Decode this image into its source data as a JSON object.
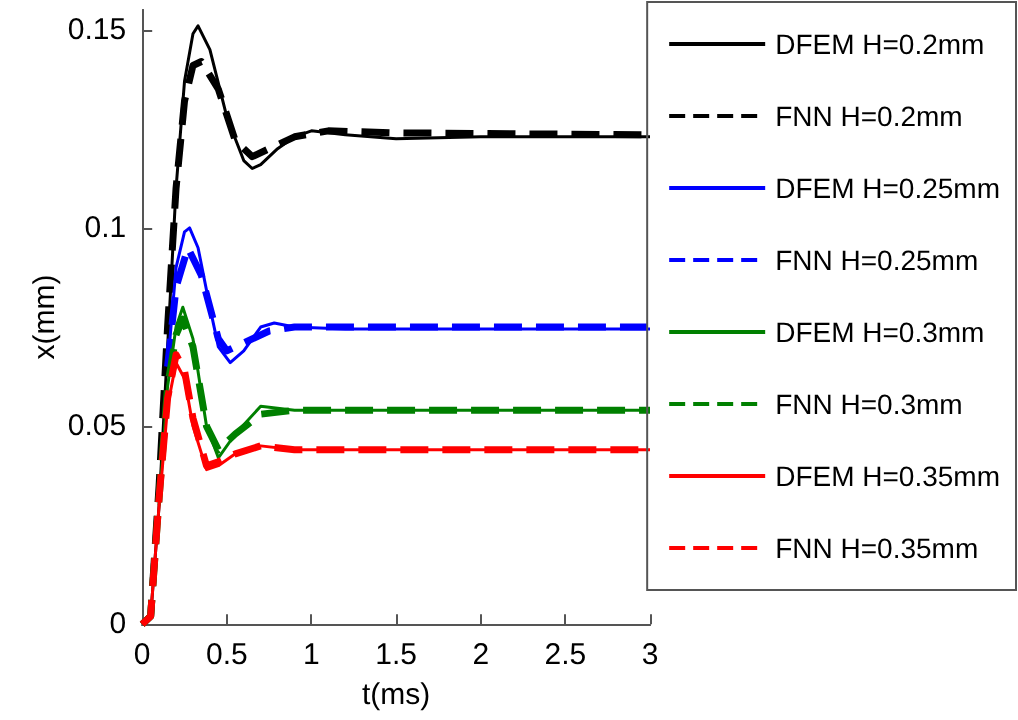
{
  "chart_data": {
    "type": "line",
    "xlabel": "t(ms)",
    "ylabel": "x(mm)",
    "xlim": [
      0,
      3
    ],
    "ylim": [
      0,
      0.155
    ],
    "xticks": [
      0,
      0.5,
      1,
      1.5,
      2,
      2.5,
      3
    ],
    "yticks": [
      0,
      0.05,
      0.1,
      0.15
    ],
    "grid": false,
    "legend": "right",
    "marker": "none",
    "series": [
      {
        "name": "DFEM H=0.2mm",
        "color": "#000000",
        "line_style": "solid",
        "x": [
          0,
          0.05,
          0.1,
          0.15,
          0.2,
          0.25,
          0.3,
          0.33,
          0.4,
          0.5,
          0.6,
          0.65,
          0.7,
          0.8,
          0.9,
          1.0,
          1.2,
          1.5,
          2,
          3
        ],
        "values": [
          0,
          0.002,
          0.03,
          0.07,
          0.11,
          0.137,
          0.149,
          0.151,
          0.145,
          0.128,
          0.117,
          0.115,
          0.116,
          0.12,
          0.123,
          0.1245,
          0.1235,
          0.1225,
          0.123,
          0.123
        ]
      },
      {
        "name": "FNN H=0.2mm",
        "color": "#000000",
        "line_style": "dashed",
        "x": [
          0,
          0.05,
          0.1,
          0.15,
          0.2,
          0.25,
          0.3,
          0.35,
          0.45,
          0.55,
          0.65,
          0.75,
          0.9,
          1.1,
          1.5,
          3
        ],
        "values": [
          0,
          0.002,
          0.035,
          0.075,
          0.11,
          0.132,
          0.141,
          0.142,
          0.135,
          0.122,
          0.118,
          0.12,
          0.123,
          0.1245,
          0.124,
          0.1235
        ]
      },
      {
        "name": "DFEM H=0.25mm",
        "color": "#0000ff",
        "line_style": "solid",
        "x": [
          0.15,
          0.2,
          0.25,
          0.28,
          0.33,
          0.4,
          0.45,
          0.52,
          0.6,
          0.7,
          0.78,
          0.9,
          1.2,
          3
        ],
        "values": [
          0.065,
          0.09,
          0.099,
          0.1,
          0.095,
          0.08,
          0.07,
          0.066,
          0.069,
          0.075,
          0.076,
          0.075,
          0.0745,
          0.0745
        ]
      },
      {
        "name": "FNN H=0.25mm",
        "color": "#0000ff",
        "line_style": "dashed",
        "x": [
          0.15,
          0.2,
          0.27,
          0.35,
          0.45,
          0.5,
          0.6,
          0.75,
          0.9,
          3
        ],
        "values": [
          0.065,
          0.085,
          0.095,
          0.088,
          0.072,
          0.069,
          0.071,
          0.074,
          0.075,
          0.075
        ]
      },
      {
        "name": "DFEM H=0.3mm",
        "color": "#008000",
        "line_style": "solid",
        "x": [
          0.1,
          0.15,
          0.2,
          0.24,
          0.3,
          0.38,
          0.45,
          0.55,
          0.7,
          0.9,
          3
        ],
        "values": [
          0.03,
          0.06,
          0.075,
          0.08,
          0.072,
          0.05,
          0.042,
          0.048,
          0.055,
          0.054,
          0.054
        ]
      },
      {
        "name": "FNN H=0.3mm",
        "color": "#008000",
        "line_style": "dashed",
        "x": [
          0,
          0.05,
          0.1,
          0.15,
          0.2,
          0.24,
          0.3,
          0.38,
          0.45,
          0.55,
          0.7,
          0.9,
          3
        ],
        "values": [
          0,
          0.002,
          0.032,
          0.06,
          0.073,
          0.077,
          0.07,
          0.05,
          0.044,
          0.048,
          0.053,
          0.054,
          0.054
        ]
      },
      {
        "name": "DFEM H=0.35mm",
        "color": "#ff0000",
        "line_style": "solid",
        "x": [
          0,
          0.05,
          0.1,
          0.15,
          0.2,
          0.25,
          0.3,
          0.38,
          0.45,
          0.55,
          0.7,
          0.9,
          3
        ],
        "values": [
          0,
          0.002,
          0.03,
          0.055,
          0.066,
          0.062,
          0.05,
          0.039,
          0.04,
          0.043,
          0.045,
          0.044,
          0.044
        ]
      },
      {
        "name": "FNN H=0.35mm",
        "color": "#ff0000",
        "line_style": "dashed",
        "x": [
          0,
          0.05,
          0.1,
          0.15,
          0.2,
          0.25,
          0.3,
          0.38,
          0.45,
          0.55,
          0.7,
          0.9,
          3
        ],
        "values": [
          0,
          0.002,
          0.032,
          0.057,
          0.068,
          0.064,
          0.052,
          0.04,
          0.041,
          0.043,
          0.045,
          0.044,
          0.044
        ]
      }
    ]
  }
}
